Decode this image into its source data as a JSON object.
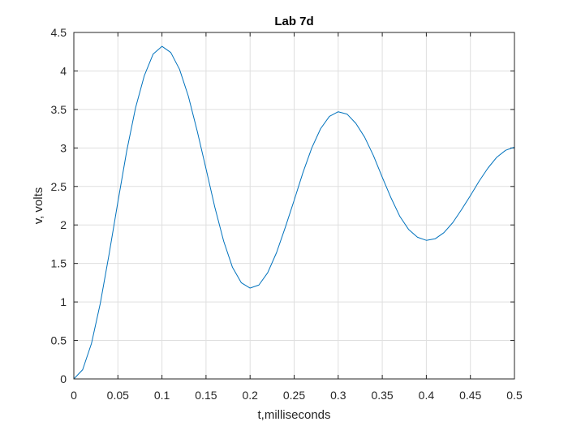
{
  "chart_data": {
    "type": "line",
    "title": "Lab 7d",
    "xlabel": "t,milliseconds",
    "ylabel": "v, volts",
    "xlim": [
      0,
      0.5
    ],
    "ylim": [
      0,
      4.5
    ],
    "xticks": [
      "0",
      "0.05",
      "0.1",
      "0.15",
      "0.2",
      "0.25",
      "0.3",
      "0.35",
      "0.4",
      "0.45",
      "0.5"
    ],
    "yticks": [
      "0",
      "0.5",
      "1",
      "1.5",
      "2",
      "2.5",
      "3",
      "3.5",
      "4",
      "4.5"
    ],
    "grid": true,
    "series": [
      {
        "color": "#0072BD",
        "x": [
          0,
          0.01,
          0.02,
          0.03,
          0.04,
          0.05,
          0.06,
          0.07,
          0.08,
          0.09,
          0.1,
          0.11,
          0.12,
          0.13,
          0.14,
          0.15,
          0.16,
          0.17,
          0.18,
          0.19,
          0.2,
          0.21,
          0.22,
          0.23,
          0.24,
          0.25,
          0.26,
          0.27,
          0.28,
          0.29,
          0.3,
          0.31,
          0.32,
          0.33,
          0.34,
          0.35,
          0.36,
          0.37,
          0.38,
          0.39,
          0.4,
          0.41,
          0.42,
          0.43,
          0.44,
          0.45,
          0.46,
          0.47,
          0.48,
          0.49,
          0.5
        ],
        "y": [
          0,
          0.12,
          0.46,
          0.98,
          1.62,
          2.3,
          2.96,
          3.52,
          3.94,
          4.22,
          4.32,
          4.24,
          4.02,
          3.67,
          3.22,
          2.73,
          2.23,
          1.79,
          1.45,
          1.25,
          1.18,
          1.22,
          1.38,
          1.64,
          1.97,
          2.32,
          2.68,
          3.0,
          3.25,
          3.41,
          3.47,
          3.44,
          3.32,
          3.14,
          2.9,
          2.62,
          2.35,
          2.11,
          1.94,
          1.84,
          1.8,
          1.82,
          1.9,
          2.03,
          2.2,
          2.38,
          2.57,
          2.74,
          2.88,
          2.97,
          3.01
        ]
      }
    ]
  }
}
